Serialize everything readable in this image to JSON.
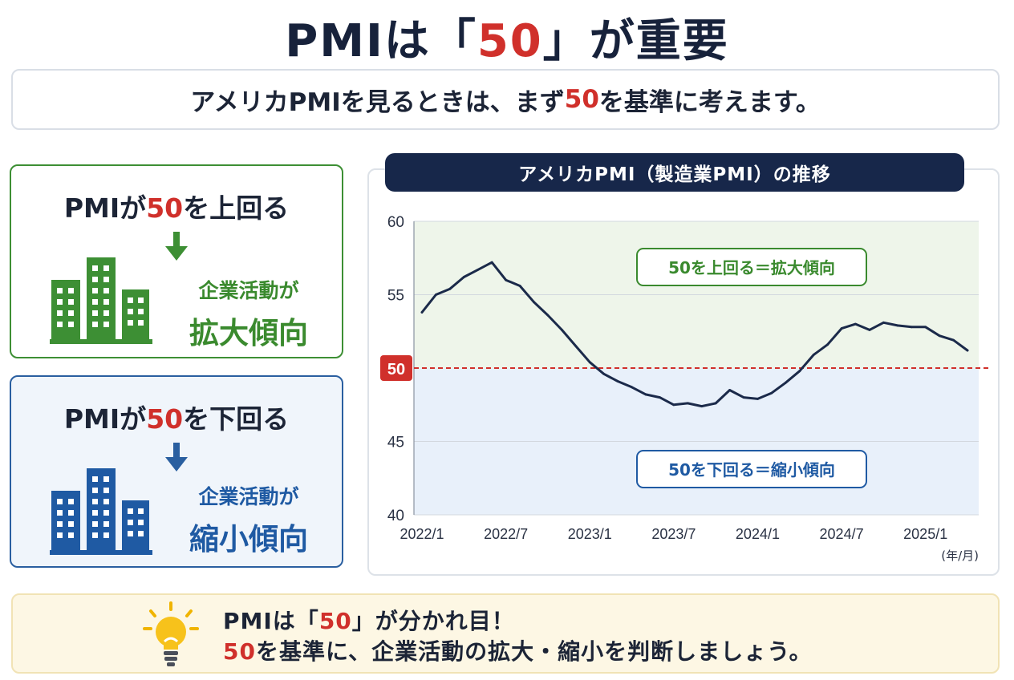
{
  "title": {
    "pre": "PMIは「",
    "num": "50",
    "post": "」が重要"
  },
  "subtitle": {
    "pre": "アメリカPMIを見るときは、まず",
    "num": "50",
    "post": "を基準に考えます。"
  },
  "cards": {
    "up": {
      "pre": "PMIが",
      "num": "50",
      "post": "を上回る",
      "line1": "企業活動が",
      "line2": "拡大傾向"
    },
    "down": {
      "pre": "PMIが",
      "num": "50",
      "post": "を下回る",
      "line1": "企業活動が",
      "line2": "縮小傾向"
    }
  },
  "tip": {
    "line1_pre": "PMIは「",
    "line1_num": "50",
    "line1_post": "」が分かれ目！",
    "line2_num": "50",
    "line2_post": "を基準に、企業活動の拡大・縮小を判断しましょう。"
  },
  "colors": {
    "navy": "#17223b",
    "red": "#d0302b",
    "green": "#3a8a2e",
    "blue": "#1f5aa3",
    "line": "#1b2a4a",
    "zone_up": "#eef5ea",
    "zone_down": "#e8f0fa"
  },
  "icons": {
    "arrow_up_card": "arrow-down-icon",
    "arrow_down_card": "arrow-down-icon",
    "tip": "lightbulb-icon",
    "building": "building-icon"
  },
  "chart_data": {
    "type": "line",
    "title": "アメリカPMI（製造業PMI）の推移",
    "unit_label": "(年/月)",
    "ylim": [
      40,
      60
    ],
    "y_ticks": [
      "60",
      "55",
      "50",
      "45",
      "40"
    ],
    "x_tick_labels": [
      "2022/1",
      "2022/7",
      "2023/1",
      "2023/7",
      "2024/1",
      "2024/7",
      "2025/1"
    ],
    "threshold": 50,
    "threshold_label": "50",
    "zone_above_label": "50を上回る＝拡大傾向",
    "zone_below_label": "50を下回る＝縮小傾向",
    "grid": true,
    "series": [
      {
        "x": [
          "2022/1",
          "2022/2",
          "2022/3",
          "2022/4",
          "2022/5",
          "2022/6",
          "2022/7",
          "2022/8",
          "2022/9",
          "2022/10",
          "2022/11",
          "2022/12",
          "2023/1",
          "2023/2",
          "2023/3",
          "2023/4",
          "2023/5",
          "2023/6",
          "2023/7",
          "2023/8",
          "2023/9",
          "2023/10",
          "2023/11",
          "2023/12",
          "2024/1",
          "2024/2",
          "2024/3",
          "2024/4",
          "2024/5",
          "2024/6",
          "2024/7",
          "2024/8",
          "2024/9",
          "2024/10",
          "2024/11",
          "2024/12",
          "2025/1",
          "2025/2",
          "2025/3",
          "2025/4"
        ],
        "values": [
          53.8,
          55.0,
          55.4,
          56.2,
          56.7,
          57.2,
          56.0,
          55.6,
          54.5,
          53.6,
          52.6,
          51.5,
          50.4,
          49.6,
          49.1,
          48.7,
          48.2,
          48.0,
          47.5,
          47.6,
          47.4,
          47.6,
          48.5,
          48.0,
          47.9,
          48.3,
          49.0,
          49.8,
          50.9,
          51.6,
          52.7,
          53.0,
          52.6,
          53.1,
          52.9,
          52.8,
          52.8,
          52.2,
          51.9,
          51.2
        ]
      }
    ]
  }
}
